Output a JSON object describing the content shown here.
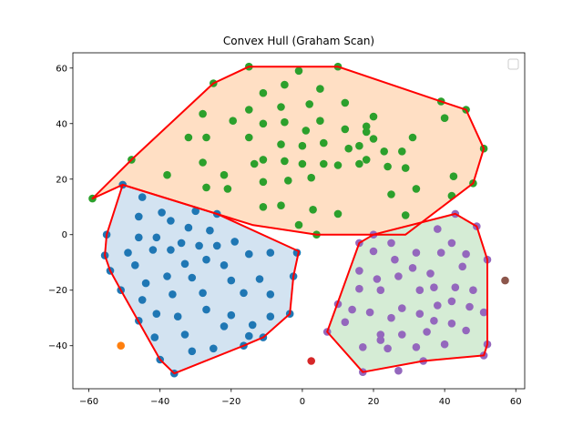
{
  "chart_data": {
    "type": "scatter",
    "title": "Convex Hull (Graham Scan)",
    "xlabel": "",
    "ylabel": "",
    "xlim": [
      -64.5,
      62.5
    ],
    "ylim": [
      -55.5,
      65.5
    ],
    "x_ticks": [
      -60,
      -40,
      -20,
      0,
      20,
      40,
      60
    ],
    "y_ticks": [
      -40,
      -20,
      0,
      20,
      40,
      60
    ],
    "x_tick_labels": [
      "−60",
      "−40",
      "−20",
      "0",
      "20",
      "40",
      "60"
    ],
    "y_tick_labels": [
      "−40",
      "−20",
      "0",
      "20",
      "40",
      "60"
    ],
    "grid": false,
    "legend": {
      "placement": "top-right",
      "entries": []
    },
    "colors": {
      "hull_edge": "#ff0000",
      "blue": "#1f77b4",
      "orange": "#ff7f0e",
      "green": "#2ca02c",
      "red": "#d62728",
      "purple": "#9467bd",
      "brown": "#8c564b",
      "fill_blue": "#d3e3f1",
      "fill_orange": "#ffdfc4",
      "fill_green": "#d5ecd5"
    },
    "series": [
      {
        "color": "#1f77b4",
        "points": [
          [
            -50.5,
            18
          ],
          [
            -45,
            13.5
          ],
          [
            -39.5,
            8
          ],
          [
            -30,
            8.5
          ],
          [
            -24,
            7.5
          ],
          [
            -46,
            6.5
          ],
          [
            -37,
            5
          ],
          [
            -32,
            2.5
          ],
          [
            -26,
            1.5
          ],
          [
            -55,
            0
          ],
          [
            -46,
            -1
          ],
          [
            -41,
            -1
          ],
          [
            -34,
            -3
          ],
          [
            -29,
            -4
          ],
          [
            -24,
            -4
          ],
          [
            -19,
            -2.5
          ],
          [
            -15,
            -7
          ],
          [
            -55.5,
            -7.5
          ],
          [
            -49,
            -6.5
          ],
          [
            -42,
            -5.5
          ],
          [
            -37,
            -5.5
          ],
          [
            -27,
            -9
          ],
          [
            -9,
            -6.5
          ],
          [
            -1.5,
            -6.5
          ],
          [
            -54,
            -13
          ],
          [
            -47,
            -11
          ],
          [
            -38,
            -15
          ],
          [
            -33,
            -10.5
          ],
          [
            -22,
            -11
          ],
          [
            -31,
            -15.5
          ],
          [
            -20,
            -16.5
          ],
          [
            -44,
            -17.5
          ],
          [
            -12,
            -16
          ],
          [
            -2.5,
            -15
          ],
          [
            -51,
            -20
          ],
          [
            -45,
            -23.5
          ],
          [
            -36.5,
            -21.5
          ],
          [
            -28,
            -21
          ],
          [
            -16.5,
            -21
          ],
          [
            -9,
            -21.5
          ],
          [
            -41,
            -28.5
          ],
          [
            -35,
            -29.5
          ],
          [
            -27,
            -27
          ],
          [
            -20,
            -29
          ],
          [
            -14,
            -32.5
          ],
          [
            -9,
            -29.5
          ],
          [
            -3.5,
            -28.5
          ],
          [
            -46,
            -31
          ],
          [
            -41.5,
            -37
          ],
          [
            -33,
            -36
          ],
          [
            -22,
            -33
          ],
          [
            -15,
            -36.5
          ],
          [
            -11,
            -37
          ],
          [
            -40,
            -45
          ],
          [
            -36,
            -50
          ],
          [
            -31,
            -42
          ],
          [
            -25,
            -41
          ],
          [
            -16.5,
            -40
          ]
        ]
      },
      {
        "color": "#ff7f0e",
        "points": [
          [
            -51,
            -40
          ]
        ]
      },
      {
        "color": "#2ca02c",
        "points": [
          [
            -59,
            13
          ],
          [
            -48,
            27
          ],
          [
            -25,
            54.5
          ],
          [
            -15,
            60.5
          ],
          [
            -1,
            59
          ],
          [
            10,
            60.5
          ],
          [
            39,
            48
          ],
          [
            40,
            42
          ],
          [
            46,
            45
          ],
          [
            51,
            31
          ],
          [
            48,
            18.5
          ],
          [
            42,
            14
          ],
          [
            42.5,
            21
          ],
          [
            -38,
            21.5
          ],
          [
            -22,
            21.5
          ],
          [
            -21,
            16.5
          ],
          [
            -27,
            17
          ],
          [
            -11,
            19
          ],
          [
            -4,
            19.5
          ],
          [
            -11,
            10
          ],
          [
            -6,
            10.5
          ],
          [
            -1,
            3.5
          ],
          [
            3,
            9
          ],
          [
            4,
            0
          ],
          [
            -27,
            35
          ],
          [
            -32,
            35
          ],
          [
            -28,
            43.5
          ],
          [
            -28,
            26
          ],
          [
            -19.5,
            41
          ],
          [
            -15,
            35
          ],
          [
            -15,
            45
          ],
          [
            -11,
            40
          ],
          [
            -11,
            51
          ],
          [
            -11,
            27
          ],
          [
            -6,
            46
          ],
          [
            -5,
            54
          ],
          [
            -5,
            40.5
          ],
          [
            -6,
            32.5
          ],
          [
            -5,
            26.5
          ],
          [
            0,
            32
          ],
          [
            0,
            25.5
          ],
          [
            1,
            37.5
          ],
          [
            2,
            47
          ],
          [
            2.5,
            20.5
          ],
          [
            5,
            52.5
          ],
          [
            5,
            41
          ],
          [
            6,
            33
          ],
          [
            6,
            25.5
          ],
          [
            10,
            25
          ],
          [
            10,
            7.5
          ],
          [
            12,
            47.5
          ],
          [
            12,
            38
          ],
          [
            13,
            31
          ],
          [
            16,
            32
          ],
          [
            16,
            25.5
          ],
          [
            18,
            37
          ],
          [
            18,
            27
          ],
          [
            18,
            39
          ],
          [
            20,
            34.5
          ],
          [
            20,
            42.5
          ],
          [
            23,
            30
          ],
          [
            24,
            24.5
          ],
          [
            25,
            14.5
          ],
          [
            28,
            30
          ],
          [
            31,
            35
          ],
          [
            29,
            24
          ],
          [
            29,
            7
          ],
          [
            32,
            16.5
          ],
          [
            -13.5,
            25.5
          ]
        ]
      },
      {
        "color": "#d62728",
        "points": [
          [
            2.5,
            -45.5
          ]
        ]
      },
      {
        "color": "#9467bd",
        "points": [
          [
            43,
            7.5
          ],
          [
            49,
            3
          ],
          [
            38,
            2
          ],
          [
            42,
            -3
          ],
          [
            20,
            0
          ],
          [
            16,
            -3
          ],
          [
            25,
            -3
          ],
          [
            46,
            -7
          ],
          [
            20,
            -6
          ],
          [
            32,
            -6.5
          ],
          [
            39,
            -6.5
          ],
          [
            52,
            -9
          ],
          [
            26,
            -9
          ],
          [
            16,
            -13
          ],
          [
            31,
            -12
          ],
          [
            36,
            -14
          ],
          [
            45,
            -11.5
          ],
          [
            21,
            -16
          ],
          [
            27,
            -15
          ],
          [
            37,
            -19
          ],
          [
            43,
            -19
          ],
          [
            48,
            -20
          ],
          [
            16,
            -19.5
          ],
          [
            22,
            -20
          ],
          [
            33,
            -20
          ],
          [
            10,
            -25
          ],
          [
            28,
            -26.5
          ],
          [
            33,
            -28.5
          ],
          [
            38,
            -25.5
          ],
          [
            42,
            -24
          ],
          [
            47,
            -26
          ],
          [
            14,
            -27
          ],
          [
            19,
            -28
          ],
          [
            25,
            -30
          ],
          [
            12,
            -31.5
          ],
          [
            37,
            -31
          ],
          [
            42,
            -32
          ],
          [
            51,
            -28
          ],
          [
            7,
            -35
          ],
          [
            22,
            -36
          ],
          [
            28,
            -36
          ],
          [
            35,
            -35
          ],
          [
            46,
            -34.5
          ],
          [
            17,
            -40.5
          ],
          [
            24,
            -41
          ],
          [
            32,
            -40.5
          ],
          [
            40,
            -39.5
          ],
          [
            52,
            -39.5
          ],
          [
            17,
            -49.5
          ],
          [
            27,
            -49
          ],
          [
            34,
            -45.5
          ],
          [
            51,
            -43.5
          ],
          [
            22,
            -38
          ]
        ]
      },
      {
        "color": "#8c564b",
        "points": [
          [
            57,
            -16.5
          ]
        ]
      }
    ],
    "hulls": [
      {
        "color": "#1f77b4",
        "fill": "#d3e3f1",
        "vertices": [
          [
            -50.5,
            18
          ],
          [
            -24,
            7.5
          ],
          [
            -1,
            -6
          ],
          [
            -2.5,
            -15
          ],
          [
            -3.5,
            -28.5
          ],
          [
            -11,
            -37
          ],
          [
            -16.5,
            -40
          ],
          [
            -36,
            -50
          ],
          [
            -40,
            -45
          ],
          [
            -51,
            -20
          ],
          [
            -54,
            -13
          ],
          [
            -55.5,
            -7.5
          ],
          [
            -55,
            0
          ]
        ]
      },
      {
        "color": "#ff7f0e",
        "fill": "#ffdfc4",
        "vertices": [
          [
            -59,
            13
          ],
          [
            -48,
            27
          ],
          [
            -25,
            54.5
          ],
          [
            -15,
            60.5
          ],
          [
            10,
            60.5
          ],
          [
            39,
            48
          ],
          [
            46,
            45
          ],
          [
            51,
            31
          ],
          [
            48,
            18.5
          ],
          [
            29,
            0
          ],
          [
            4,
            0
          ],
          [
            -14,
            3.5
          ],
          [
            -50.5,
            18
          ]
        ]
      },
      {
        "color": "#2ca02c",
        "fill": "#d5ecd5",
        "vertices": [
          [
            20,
            0
          ],
          [
            43,
            7.5
          ],
          [
            49,
            3
          ],
          [
            52,
            -9
          ],
          [
            52,
            -39.5
          ],
          [
            51,
            -43.5
          ],
          [
            34,
            -45.5
          ],
          [
            17,
            -49.5
          ],
          [
            7,
            -35
          ],
          [
            16,
            -3
          ]
        ]
      }
    ]
  }
}
